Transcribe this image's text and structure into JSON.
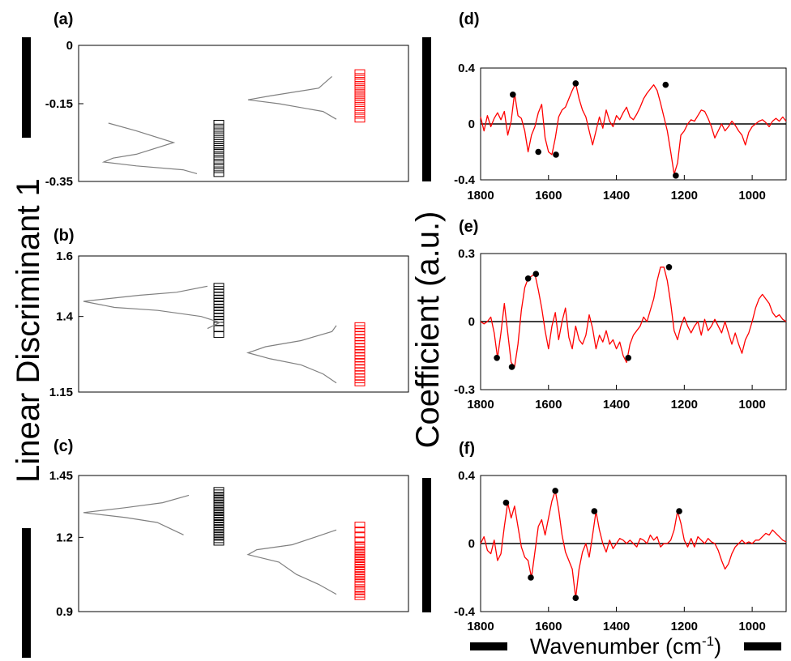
{
  "figure": {
    "left_ylabel": "Linear Discriminant 1",
    "right_ylabel": "Coefficient (a.u.)",
    "right_xlabel": "Wavenumber (cm",
    "right_xlabel_sup": "-1",
    "right_xlabel_close": ")"
  },
  "chart_data": [
    {
      "panel": "(a)",
      "type": "scatter",
      "description_kind": "LD1 score strip plot with density curves",
      "ylim": [
        -0.35,
        0
      ],
      "yticks": [
        "0",
        "-0.15",
        "-0.35"
      ],
      "ytick_values": [
        0,
        -0.15,
        -0.35
      ],
      "colors": {
        "group1": "#000000",
        "group2": "#ff0000",
        "density": "#808080"
      },
      "series": [
        {
          "values": [
            -0.2,
            -0.21,
            -0.22,
            -0.23,
            -0.24,
            -0.25,
            -0.25,
            -0.26,
            -0.26,
            -0.26,
            -0.27,
            -0.27,
            -0.28,
            -0.29,
            -0.3,
            -0.31,
            -0.32,
            -0.33
          ],
          "color": "#000000"
        },
        {
          "values": [
            -0.07,
            -0.08,
            -0.09,
            -0.09,
            -0.1,
            -0.1,
            -0.11,
            -0.11,
            -0.12,
            -0.12,
            -0.12,
            -0.13,
            -0.13,
            -0.13,
            -0.14,
            -0.14,
            -0.15,
            -0.15,
            -0.16,
            -0.17,
            -0.18,
            -0.19
          ],
          "color": "#ff0000"
        }
      ],
      "density": [
        {
          "points": [
            [
              -0.2,
              0.05
            ],
            [
              -0.22,
              0.35
            ],
            [
              -0.25,
              0.75
            ],
            [
              -0.28,
              0.35
            ],
            [
              -0.29,
              0.1
            ],
            [
              -0.3,
              0.0
            ],
            [
              -0.31,
              0.35
            ],
            [
              -0.32,
              0.85
            ],
            [
              -0.33,
              1.0
            ]
          ]
        },
        {
          "points": [
            [
              -0.08,
              0.95
            ],
            [
              -0.09,
              0.9
            ],
            [
              -0.11,
              0.8
            ],
            [
              -0.13,
              0.25
            ],
            [
              -0.14,
              0.0
            ],
            [
              -0.15,
              0.35
            ],
            [
              -0.17,
              0.85
            ],
            [
              -0.19,
              1.0
            ]
          ]
        }
      ]
    },
    {
      "panel": "(b)",
      "type": "scatter",
      "description_kind": "LD1 score strip plot with density curves",
      "ylim": [
        1.15,
        1.6
      ],
      "yticks": [
        "1.6",
        "1.4",
        "1.15"
      ],
      "ytick_values": [
        1.6,
        1.4,
        1.15
      ],
      "colors": {
        "group1": "#000000",
        "group2": "#ff0000",
        "density": "#808080"
      },
      "series": [
        {
          "values": [
            1.5,
            1.49,
            1.48,
            1.47,
            1.46,
            1.46,
            1.45,
            1.45,
            1.44,
            1.44,
            1.44,
            1.43,
            1.43,
            1.42,
            1.42,
            1.41,
            1.4,
            1.39,
            1.38,
            1.36,
            1.34
          ],
          "color": "#000000"
        },
        {
          "values": [
            1.37,
            1.36,
            1.35,
            1.34,
            1.33,
            1.32,
            1.31,
            1.3,
            1.29,
            1.29,
            1.28,
            1.28,
            1.27,
            1.27,
            1.26,
            1.26,
            1.25,
            1.25,
            1.24,
            1.23,
            1.22,
            1.21,
            1.2,
            1.19,
            1.18
          ],
          "color": "#ff0000"
        }
      ],
      "density": [
        {
          "points": [
            [
              1.5,
              1.0
            ],
            [
              1.48,
              0.75
            ],
            [
              1.47,
              0.45
            ],
            [
              1.45,
              0.0
            ],
            [
              1.43,
              0.25
            ],
            [
              1.42,
              0.6
            ],
            [
              1.4,
              0.95
            ],
            [
              1.38,
              1.1
            ],
            [
              1.36,
              1.0
            ]
          ]
        },
        {
          "points": [
            [
              1.37,
              1.0
            ],
            [
              1.35,
              0.95
            ],
            [
              1.32,
              0.6
            ],
            [
              1.3,
              0.2
            ],
            [
              1.28,
              0.0
            ],
            [
              1.26,
              0.25
            ],
            [
              1.24,
              0.6
            ],
            [
              1.21,
              0.85
            ],
            [
              1.18,
              1.0
            ]
          ]
        }
      ]
    },
    {
      "panel": "(c)",
      "type": "scatter",
      "description_kind": "LD1 score strip plot with density curves",
      "ylim": [
        0.9,
        1.45
      ],
      "yticks": [
        "1.45",
        "1.2",
        "0.9"
      ],
      "ytick_values": [
        1.45,
        1.2,
        0.9
      ],
      "colors": {
        "group1": "#000000",
        "group2": "#ff0000",
        "density": "#808080"
      },
      "series": [
        {
          "values": [
            1.39,
            1.38,
            1.37,
            1.36,
            1.35,
            1.34,
            1.33,
            1.32,
            1.31,
            1.31,
            1.3,
            1.3,
            1.29,
            1.29,
            1.28,
            1.28,
            1.27,
            1.26,
            1.25,
            1.24,
            1.23,
            1.22,
            1.21,
            1.2,
            1.19,
            1.18
          ],
          "color": "#000000"
        },
        {
          "values": [
            1.25,
            1.23,
            1.21,
            1.19,
            1.17,
            1.16,
            1.15,
            1.14,
            1.13,
            1.12,
            1.12,
            1.11,
            1.11,
            1.1,
            1.1,
            1.09,
            1.08,
            1.07,
            1.06,
            1.05,
            1.04,
            1.03,
            1.02,
            1.01,
            0.99,
            0.98,
            0.97,
            0.96
          ],
          "color": "#ff0000"
        }
      ],
      "density": [
        {
          "points": [
            [
              1.37,
              1.0
            ],
            [
              1.34,
              0.75
            ],
            [
              1.32,
              0.4
            ],
            [
              1.3,
              0.0
            ],
            [
              1.28,
              0.4
            ],
            [
              1.26,
              0.7
            ],
            [
              1.23,
              0.85
            ],
            [
              1.21,
              0.95
            ]
          ]
        },
        {
          "points": [
            [
              1.23,
              1.0
            ],
            [
              1.2,
              0.75
            ],
            [
              1.17,
              0.5
            ],
            [
              1.15,
              0.1
            ],
            [
              1.13,
              0.0
            ],
            [
              1.1,
              0.35
            ],
            [
              1.05,
              0.55
            ],
            [
              1.01,
              0.8
            ],
            [
              0.97,
              1.0
            ]
          ]
        }
      ]
    },
    {
      "panel": "(d)",
      "type": "line",
      "color": "#ff0000",
      "xlim": [
        1800,
        900
      ],
      "xticks": [
        1800,
        1600,
        1400,
        1200,
        1000
      ],
      "ylim": [
        -0.4,
        0.4
      ],
      "yticks": [
        "0.4",
        "0",
        "-0.4"
      ],
      "ytick_values": [
        0.4,
        0,
        -0.4
      ],
      "x": [
        1800,
        1790,
        1780,
        1770,
        1760,
        1750,
        1740,
        1730,
        1720,
        1710,
        1700,
        1690,
        1680,
        1670,
        1660,
        1650,
        1640,
        1630,
        1620,
        1610,
        1600,
        1590,
        1580,
        1570,
        1560,
        1550,
        1540,
        1530,
        1520,
        1510,
        1500,
        1490,
        1480,
        1470,
        1460,
        1450,
        1440,
        1430,
        1420,
        1410,
        1400,
        1390,
        1380,
        1370,
        1360,
        1350,
        1340,
        1330,
        1320,
        1310,
        1300,
        1290,
        1280,
        1270,
        1260,
        1250,
        1240,
        1230,
        1220,
        1210,
        1200,
        1190,
        1180,
        1170,
        1160,
        1150,
        1140,
        1130,
        1120,
        1110,
        1100,
        1090,
        1080,
        1070,
        1060,
        1050,
        1040,
        1030,
        1020,
        1010,
        1000,
        990,
        980,
        970,
        960,
        950,
        940,
        930,
        920,
        910,
        900
      ],
      "y": [
        0.05,
        -0.05,
        0.06,
        -0.02,
        0.04,
        0.08,
        0.03,
        0.09,
        -0.08,
        0.02,
        0.22,
        0.06,
        0.04,
        -0.05,
        -0.2,
        -0.08,
        -0.02,
        0.08,
        0.14,
        -0.1,
        -0.2,
        -0.22,
        -0.1,
        0.05,
        0.1,
        0.12,
        0.18,
        0.24,
        0.29,
        0.18,
        0.1,
        0.05,
        -0.05,
        -0.15,
        -0.05,
        0.05,
        -0.03,
        0.1,
        0.02,
        -0.02,
        0.06,
        0.03,
        0.08,
        0.12,
        0.05,
        0.03,
        0.07,
        0.12,
        0.18,
        0.22,
        0.25,
        0.28,
        0.24,
        0.15,
        0.05,
        -0.05,
        -0.2,
        -0.36,
        -0.28,
        -0.08,
        -0.05,
        0.0,
        0.03,
        0.02,
        0.06,
        0.1,
        0.09,
        0.04,
        -0.02,
        -0.1,
        -0.05,
        0.0,
        -0.05,
        -0.02,
        0.02,
        -0.01,
        -0.05,
        -0.08,
        -0.15,
        -0.06,
        -0.02,
        0.0,
        0.02,
        0.03,
        0.01,
        -0.02,
        0.02,
        0.04,
        0.02,
        0.05,
        0.02
      ],
      "peaks": [
        [
          1705,
          0.21
        ],
        [
          1630,
          -0.2
        ],
        [
          1578,
          -0.22
        ],
        [
          1520,
          0.29
        ],
        [
          1255,
          0.28
        ],
        [
          1225,
          -0.37
        ]
      ]
    },
    {
      "panel": "(e)",
      "type": "line",
      "color": "#ff0000",
      "xlim": [
        1800,
        900
      ],
      "xticks": [
        1800,
        1600,
        1400,
        1200,
        1000
      ],
      "ylim": [
        -0.3,
        0.3
      ],
      "yticks": [
        "0.3",
        "0",
        "-0.3"
      ],
      "ytick_values": [
        0.3,
        0,
        -0.3
      ],
      "x": [
        1800,
        1790,
        1780,
        1770,
        1760,
        1750,
        1740,
        1730,
        1720,
        1710,
        1700,
        1690,
        1680,
        1670,
        1660,
        1650,
        1640,
        1630,
        1620,
        1610,
        1600,
        1590,
        1580,
        1570,
        1560,
        1550,
        1540,
        1530,
        1520,
        1510,
        1500,
        1490,
        1480,
        1470,
        1460,
        1450,
        1440,
        1430,
        1420,
        1410,
        1400,
        1390,
        1380,
        1370,
        1360,
        1350,
        1340,
        1330,
        1320,
        1310,
        1300,
        1290,
        1280,
        1270,
        1260,
        1250,
        1240,
        1230,
        1220,
        1210,
        1200,
        1190,
        1180,
        1170,
        1160,
        1150,
        1140,
        1130,
        1120,
        1110,
        1100,
        1090,
        1080,
        1070,
        1060,
        1050,
        1040,
        1030,
        1020,
        1010,
        1000,
        990,
        980,
        970,
        960,
        950,
        940,
        930,
        920,
        910,
        900
      ],
      "y": [
        0.0,
        -0.01,
        0.0,
        0.02,
        -0.05,
        -0.16,
        -0.05,
        0.08,
        -0.05,
        -0.18,
        -0.2,
        -0.1,
        0.05,
        0.15,
        0.19,
        0.2,
        0.21,
        0.14,
        0.06,
        -0.04,
        -0.12,
        -0.02,
        0.04,
        -0.08,
        0.0,
        0.06,
        -0.07,
        -0.12,
        -0.02,
        -0.08,
        -0.1,
        -0.06,
        0.03,
        -0.03,
        -0.12,
        -0.06,
        -0.09,
        -0.04,
        -0.1,
        -0.08,
        -0.12,
        -0.09,
        -0.15,
        -0.18,
        -0.1,
        -0.06,
        -0.04,
        -0.02,
        0.02,
        0.0,
        0.05,
        0.1,
        0.18,
        0.24,
        0.24,
        0.18,
        0.08,
        -0.04,
        -0.08,
        -0.02,
        0.02,
        -0.02,
        -0.05,
        -0.02,
        0.0,
        -0.06,
        0.01,
        -0.04,
        -0.02,
        0.01,
        -0.02,
        -0.05,
        0.0,
        -0.05,
        -0.1,
        -0.05,
        -0.1,
        -0.14,
        -0.08,
        -0.05,
        0.0,
        0.06,
        0.1,
        0.12,
        0.1,
        0.08,
        0.04,
        0.02,
        0.03,
        0.01,
        0.0
      ],
      "peaks": [
        [
          1752,
          -0.16
        ],
        [
          1708,
          -0.2
        ],
        [
          1660,
          0.19
        ],
        [
          1637,
          0.21
        ],
        [
          1365,
          -0.16
        ],
        [
          1245,
          0.24
        ]
      ]
    },
    {
      "panel": "(f)",
      "type": "line",
      "color": "#ff0000",
      "xlim": [
        1800,
        900
      ],
      "xticks": [
        1800,
        1600,
        1400,
        1200,
        1000
      ],
      "ylim": [
        -0.4,
        0.4
      ],
      "yticks": [
        "0.4",
        "0",
        "-0.4"
      ],
      "ytick_values": [
        0.4,
        0,
        -0.4
      ],
      "x": [
        1800,
        1790,
        1780,
        1770,
        1760,
        1750,
        1740,
        1730,
        1720,
        1710,
        1700,
        1690,
        1680,
        1670,
        1660,
        1650,
        1640,
        1630,
        1620,
        1610,
        1600,
        1590,
        1580,
        1570,
        1560,
        1550,
        1540,
        1530,
        1520,
        1510,
        1500,
        1490,
        1480,
        1470,
        1460,
        1450,
        1440,
        1430,
        1420,
        1410,
        1400,
        1390,
        1380,
        1370,
        1360,
        1350,
        1340,
        1330,
        1320,
        1310,
        1300,
        1290,
        1280,
        1270,
        1260,
        1250,
        1240,
        1230,
        1220,
        1210,
        1200,
        1190,
        1180,
        1170,
        1160,
        1150,
        1140,
        1130,
        1120,
        1110,
        1100,
        1090,
        1080,
        1070,
        1060,
        1050,
        1040,
        1030,
        1020,
        1010,
        1000,
        990,
        980,
        970,
        960,
        950,
        940,
        930,
        920,
        910,
        900
      ],
      "y": [
        0.0,
        0.04,
        -0.04,
        -0.06,
        0.02,
        -0.1,
        -0.06,
        0.1,
        0.24,
        0.15,
        0.22,
        0.1,
        -0.02,
        -0.08,
        -0.1,
        -0.2,
        -0.05,
        0.1,
        0.14,
        0.05,
        0.15,
        0.25,
        0.31,
        0.2,
        0.05,
        -0.05,
        -0.1,
        -0.15,
        -0.32,
        -0.15,
        -0.05,
        0.0,
        -0.08,
        0.05,
        0.19,
        0.08,
        0.0,
        -0.05,
        0.02,
        -0.03,
        0.0,
        0.03,
        0.02,
        0.0,
        0.02,
        0.0,
        -0.02,
        0.03,
        0.02,
        0.0,
        0.05,
        0.02,
        0.04,
        -0.02,
        0.0,
        0.0,
        0.02,
        0.08,
        0.19,
        0.12,
        0.02,
        -0.02,
        0.03,
        -0.02,
        0.04,
        0.02,
        0.0,
        0.03,
        0.01,
        0.0,
        -0.04,
        -0.1,
        -0.15,
        -0.12,
        -0.06,
        -0.02,
        0.0,
        0.02,
        0.0,
        0.01,
        0.0,
        0.02,
        0.02,
        0.04,
        0.06,
        0.05,
        0.08,
        0.06,
        0.04,
        0.02,
        0.01
      ],
      "peaks": [
        [
          1725,
          0.24
        ],
        [
          1652,
          -0.2
        ],
        [
          1580,
          0.31
        ],
        [
          1520,
          -0.32
        ],
        [
          1465,
          0.19
        ],
        [
          1215,
          0.19
        ]
      ]
    }
  ]
}
